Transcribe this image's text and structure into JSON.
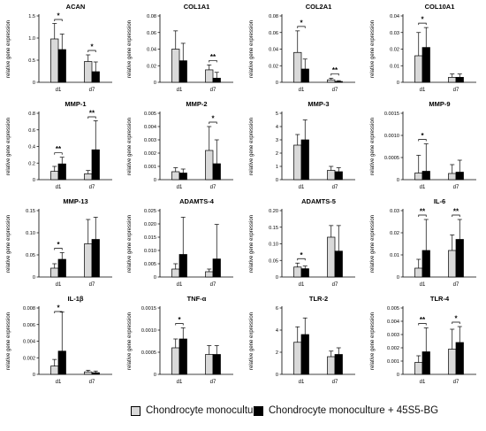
{
  "legend": {
    "control": {
      "label": "Chondrocyte monoculture",
      "color": "#d9d9d9"
    },
    "treated": {
      "label": "Chondrocyte monoculture + 45S5-BG",
      "color": "#000000"
    }
  },
  "shared": {
    "ylabel": "relative gene expression",
    "categories": [
      "d1",
      "d7"
    ]
  },
  "chart_data": [
    {
      "type": "bar",
      "title": "ACAN",
      "ylim": [
        0,
        1.5
      ],
      "yticks": [
        "0",
        "0.5",
        "1.0",
        "1.5"
      ],
      "yvals": [
        0,
        0.5,
        1,
        1.5
      ],
      "series": [
        {
          "values": [
            0.98,
            0.47
          ],
          "err": [
            0.35,
            0.15
          ]
        },
        {
          "values": [
            0.74,
            0.24
          ],
          "err": [
            0.35,
            0.22
          ]
        }
      ],
      "sig": [
        {
          "cat": 0,
          "label": "*"
        },
        {
          "cat": 1,
          "label": "*"
        }
      ]
    },
    {
      "type": "bar",
      "title": "COL1A1",
      "ylim": [
        0,
        0.08
      ],
      "yticks": [
        "0",
        "0.02",
        "0.04",
        "0.06",
        "0.08"
      ],
      "yvals": [
        0,
        0.02,
        0.04,
        0.06,
        0.08
      ],
      "series": [
        {
          "values": [
            0.04,
            0.015
          ],
          "err": [
            0.022,
            0.006
          ]
        },
        {
          "values": [
            0.026,
            0.005
          ],
          "err": [
            0.021,
            0.007
          ]
        }
      ],
      "sig": [
        {
          "cat": 1,
          "label": "**"
        }
      ]
    },
    {
      "type": "bar",
      "title": "COL2A1",
      "ylim": [
        0,
        0.08
      ],
      "yticks": [
        "0",
        "0.02",
        "0.04",
        "0.06",
        "0.08"
      ],
      "yvals": [
        0,
        0.02,
        0.04,
        0.06,
        0.08
      ],
      "series": [
        {
          "values": [
            0.036,
            0.003
          ],
          "err": [
            0.026,
            0.002
          ]
        },
        {
          "values": [
            0.016,
            0.001
          ],
          "err": [
            0.012,
            0.001
          ]
        }
      ],
      "sig": [
        {
          "cat": 0,
          "label": "*"
        },
        {
          "cat": 1,
          "label": "**"
        }
      ]
    },
    {
      "type": "bar",
      "title": "COL10A1",
      "ylim": [
        0,
        0.04
      ],
      "yticks": [
        "0",
        "0.01",
        "0.02",
        "0.03",
        "0.04"
      ],
      "yvals": [
        0,
        0.01,
        0.02,
        0.03,
        0.04
      ],
      "series": [
        {
          "values": [
            0.016,
            0.003
          ],
          "err": [
            0.014,
            0.002
          ]
        },
        {
          "values": [
            0.021,
            0.003
          ],
          "err": [
            0.012,
            0.002
          ]
        }
      ],
      "sig": [
        {
          "cat": 0,
          "label": "*"
        }
      ]
    },
    {
      "type": "bar",
      "title": "MMP-1",
      "ylim": [
        0,
        0.8
      ],
      "yticks": [
        "0",
        "0.2",
        "0.4",
        "0.6",
        "0.8"
      ],
      "yvals": [
        0,
        0.2,
        0.4,
        0.6,
        0.8
      ],
      "series": [
        {
          "values": [
            0.1,
            0.07
          ],
          "err": [
            0.06,
            0.04
          ]
        },
        {
          "values": [
            0.19,
            0.36
          ],
          "err": [
            0.08,
            0.35
          ]
        }
      ],
      "sig": [
        {
          "cat": 0,
          "label": "**"
        },
        {
          "cat": 1,
          "label": "**"
        }
      ]
    },
    {
      "type": "bar",
      "title": "MMP-2",
      "ylim": [
        0,
        0.005
      ],
      "yticks": [
        "0",
        "0.001",
        "0.002",
        "0.003",
        "0.004",
        "0.005"
      ],
      "yvals": [
        0,
        0.001,
        0.002,
        0.003,
        0.004,
        0.005
      ],
      "series": [
        {
          "values": [
            0.0006,
            0.0022
          ],
          "err": [
            0.0003,
            0.0018
          ]
        },
        {
          "values": [
            0.0005,
            0.0012
          ],
          "err": [
            0.0003,
            0.0018
          ]
        }
      ],
      "sig": [
        {
          "cat": 1,
          "label": "*"
        }
      ]
    },
    {
      "type": "bar",
      "title": "MMP-3",
      "ylim": [
        0,
        5
      ],
      "yticks": [
        "0",
        "1",
        "2",
        "3",
        "4",
        "5"
      ],
      "yvals": [
        0,
        1,
        2,
        3,
        4,
        5
      ],
      "series": [
        {
          "values": [
            2.6,
            0.7
          ],
          "err": [
            0.8,
            0.3
          ]
        },
        {
          "values": [
            3.0,
            0.6
          ],
          "err": [
            1.5,
            0.3
          ]
        }
      ],
      "sig": []
    },
    {
      "type": "bar",
      "title": "MMP-9",
      "ylim": [
        0,
        0.0015
      ],
      "yticks": [
        "0",
        "0.0005",
        "0.0010",
        "0.0015"
      ],
      "yvals": [
        0,
        0.0005,
        0.001,
        0.0015
      ],
      "series": [
        {
          "values": [
            0.00015,
            0.00014
          ],
          "err": [
            0.0004,
            0.0002
          ]
        },
        {
          "values": [
            0.00019,
            0.00017
          ],
          "err": [
            0.00062,
            0.00027
          ]
        }
      ],
      "sig": [
        {
          "cat": 0,
          "label": "*"
        }
      ]
    },
    {
      "type": "bar",
      "title": "MMP-13",
      "ylim": [
        0,
        0.15
      ],
      "yticks": [
        "0",
        "0.05",
        "0.10",
        "0.15"
      ],
      "yvals": [
        0,
        0.05,
        0.1,
        0.15
      ],
      "series": [
        {
          "values": [
            0.02,
            0.075
          ],
          "err": [
            0.01,
            0.055
          ]
        },
        {
          "values": [
            0.04,
            0.085
          ],
          "err": [
            0.015,
            0.05
          ]
        }
      ],
      "sig": [
        {
          "cat": 0,
          "label": "*"
        }
      ]
    },
    {
      "type": "bar",
      "title": "ADAMTS-4",
      "ylim": [
        0,
        0.025
      ],
      "yticks": [
        "0",
        "0.005",
        "0.010",
        "0.015",
        "0.020",
        "0.025"
      ],
      "yvals": [
        0,
        0.005,
        0.01,
        0.015,
        0.02,
        0.025
      ],
      "series": [
        {
          "values": [
            0.003,
            0.002
          ],
          "err": [
            0.002,
            0.001
          ]
        },
        {
          "values": [
            0.0085,
            0.0068
          ],
          "err": [
            0.014,
            0.013
          ]
        }
      ],
      "sig": []
    },
    {
      "type": "bar",
      "title": "ADAMTS-5",
      "ylim": [
        0,
        0.2
      ],
      "yticks": [
        "0",
        "0.05",
        "0.10",
        "0.15",
        "0.20"
      ],
      "yvals": [
        0,
        0.05,
        0.1,
        0.15,
        0.2
      ],
      "series": [
        {
          "values": [
            0.03,
            0.12
          ],
          "err": [
            0.012,
            0.035
          ]
        },
        {
          "values": [
            0.025,
            0.078
          ],
          "err": [
            0.008,
            0.077
          ]
        }
      ],
      "sig": [
        {
          "cat": 0,
          "label": "*"
        }
      ]
    },
    {
      "type": "bar",
      "title": "IL-6",
      "ylim": [
        0,
        0.03
      ],
      "yticks": [
        "0",
        "0.01",
        "0.02",
        "0.03"
      ],
      "yvals": [
        0,
        0.01,
        0.02,
        0.03
      ],
      "series": [
        {
          "values": [
            0.004,
            0.012
          ],
          "err": [
            0.004,
            0.007
          ]
        },
        {
          "values": [
            0.012,
            0.017
          ],
          "err": [
            0.014,
            0.009
          ]
        }
      ],
      "sig": [
        {
          "cat": 0,
          "label": "**"
        },
        {
          "cat": 1,
          "label": "**"
        }
      ]
    },
    {
      "type": "bar",
      "title": "IL-1β",
      "ylim": [
        0,
        0.008
      ],
      "yticks": [
        "0",
        "0.002",
        "0.004",
        "0.006",
        "0.008"
      ],
      "yvals": [
        0,
        0.002,
        0.004,
        0.006,
        0.008
      ],
      "series": [
        {
          "values": [
            0.001,
            0.0003
          ],
          "err": [
            0.0008,
            0.0002
          ]
        },
        {
          "values": [
            0.0028,
            0.0002
          ],
          "err": [
            0.0047,
            0.0002
          ]
        }
      ],
      "sig": [
        {
          "cat": 0,
          "label": "*"
        }
      ]
    },
    {
      "type": "bar",
      "title": "TNF-α",
      "ylim": [
        0,
        0.0015
      ],
      "yticks": [
        "0",
        "0.0005",
        "0.0010",
        "0.0015"
      ],
      "yvals": [
        0,
        0.0005,
        0.001,
        0.0015
      ],
      "series": [
        {
          "values": [
            0.0006,
            0.00045
          ],
          "err": [
            0.0002,
            0.0002
          ]
        },
        {
          "values": [
            0.0008,
            0.00045
          ],
          "err": [
            0.00025,
            0.0002
          ]
        }
      ],
      "sig": [
        {
          "cat": 0,
          "label": "*"
        }
      ]
    },
    {
      "type": "bar",
      "title": "TLR-2",
      "ylim": [
        0,
        6
      ],
      "yticks": [
        "0",
        "2",
        "4",
        "6"
      ],
      "yvals": [
        0,
        2,
        4,
        6
      ],
      "series": [
        {
          "values": [
            2.9,
            1.6
          ],
          "err": [
            1.4,
            0.5
          ]
        },
        {
          "values": [
            3.6,
            1.8
          ],
          "err": [
            1.5,
            0.6
          ]
        }
      ],
      "sig": []
    },
    {
      "type": "bar",
      "title": "TLR-4",
      "ylim": [
        0,
        0.005
      ],
      "yticks": [
        "0",
        "0.001",
        "0.002",
        "0.003",
        "0.004",
        "0.005"
      ],
      "yvals": [
        0,
        0.001,
        0.002,
        0.003,
        0.004,
        0.005
      ],
      "series": [
        {
          "values": [
            0.0009,
            0.0019
          ],
          "err": [
            0.0005,
            0.0015
          ]
        },
        {
          "values": [
            0.0017,
            0.0024
          ],
          "err": [
            0.0018,
            0.0012
          ]
        }
      ],
      "sig": [
        {
          "cat": 0,
          "label": "**"
        },
        {
          "cat": 1,
          "label": "*"
        }
      ]
    }
  ]
}
